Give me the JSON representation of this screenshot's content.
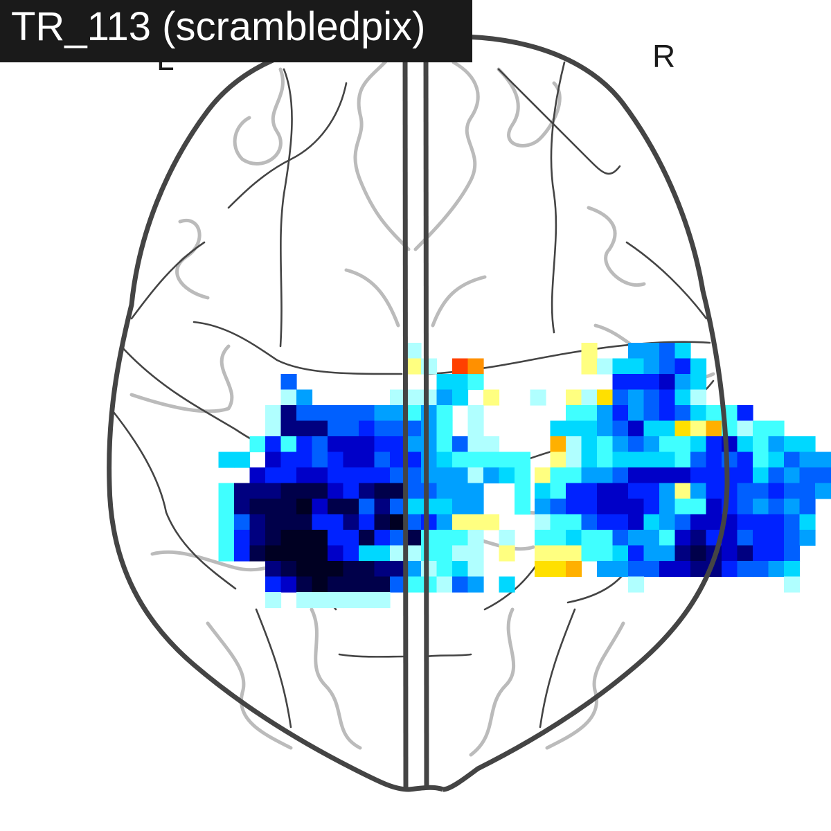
{
  "title": "TR_113 (scrambledpix)",
  "hemisphere_labels": {
    "left": "L",
    "right": "R"
  },
  "colors": {
    "outline": "#444444",
    "sulci": "#bbbbbb",
    "title_background": "#1a1a1a",
    "title_text": "#ffffff"
  },
  "colormap": {
    "levels": [
      "#000022",
      "#00004a",
      "#000080",
      "#0000c8",
      "#0022ff",
      "#0060ff",
      "#00a0ff",
      "#00d8ff",
      "#40ffff",
      "#b0ffff",
      "#ffff80",
      "#ffe000",
      "#ffb000",
      "#ff9000",
      "#ff4000"
    ]
  },
  "activation_map": {
    "left_hemisphere": [
      "...............j..............",
      "...............kj.on..........",
      ".......f.........hhi..........",
      ".......jg.....jjjgh.k..j......",
      "......jcfffffggigi.j...........",
      "......jcccffefffgi.j...........",
      ".....ieiefdddeeggifjj...........",
      "...hh.deefeddfeeghiiiii.........",
      ".....deeddeeeeffgggjghi.........",
      "...icccbbbdecbbffggg..i.........",
      "...icbbbadbbfcfhhhgg..i.........",
      "...ifcbbbeecebafegkkk...........",
      "...iecbaaaeebefbiiij.j..........",
      "...iebaaaadehhjjiijj.k..........",
      "......cbaaabbccgjihj............",
      "......edbabbbbfiijfg.h..........",
      "......j.jjjjjj.................."
    ],
    "right_hemisphere": [
      "...........k..ggfh..............",
      "...........kjhhgfeh.............",
      ".............eeedgh.............",
      "..........kjlfgfehj.............",
      "..........iigegfefhiie...........",
      ".........hhhgfdhhlkmijii.........",
      ".........mjhigfgiihedhighh.......",
      ".........kjhihhhhifefeihfgg.......",
      "........kiiggfddddeeeehfgff......",
      "........hieeddeegkgeeffeffg......",
      "........gfeedddegiidefgfgf.......",
      "........jiifeedhgfdddeeefh.......",
      "........iihiifggidcedfeefg.......",
      "........kkkiiheggcbcdceef........",
      "........llm.ggffddcceffgh........",
      "..............j.........j........"
    ]
  }
}
